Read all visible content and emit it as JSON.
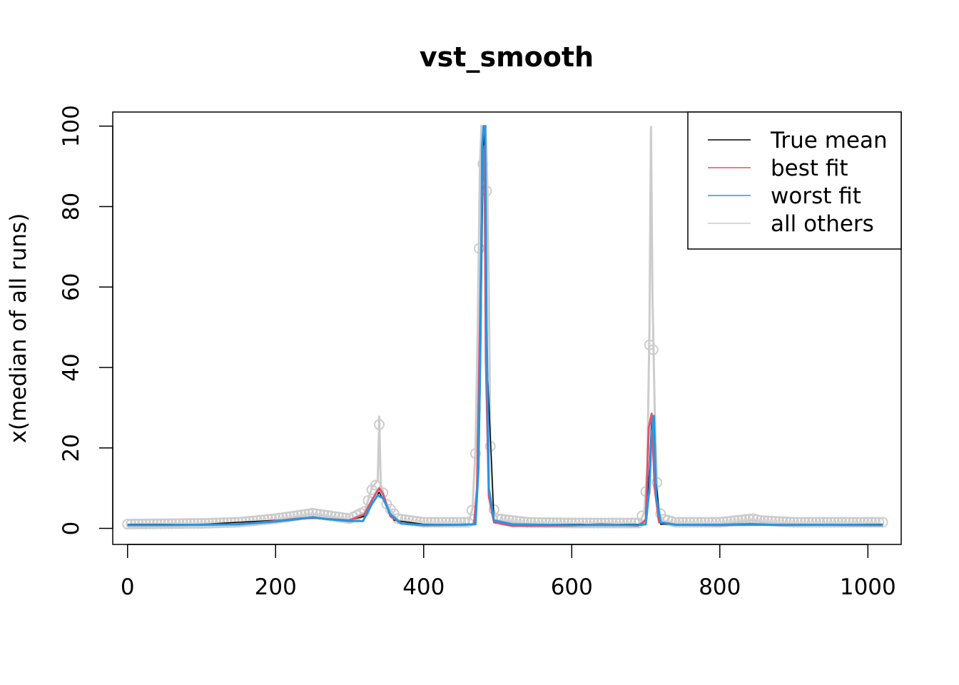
{
  "chart_data": {
    "type": "line",
    "title": "vst_smooth",
    "xlabel": "",
    "ylabel": "x(median of all runs)",
    "xlim": [
      -20,
      1045
    ],
    "ylim": [
      -4,
      103.5
    ],
    "x_ticks": [
      0,
      200,
      400,
      600,
      800,
      1000
    ],
    "y_ticks": [
      0,
      20,
      40,
      60,
      80,
      100
    ],
    "grid": false,
    "legend": {
      "position": "top-right",
      "entries": [
        {
          "label": "True mean",
          "color": "#000000"
        },
        {
          "label": "best fit",
          "color": "#df536b"
        },
        {
          "label": "worst fit",
          "color": "#2297e6"
        },
        {
          "label": "all others",
          "color": "#cccccc"
        }
      ]
    },
    "series": [
      {
        "name": "True mean",
        "color": "#000000",
        "points": [
          [
            0,
            1
          ],
          [
            100,
            1
          ],
          [
            200,
            2
          ],
          [
            250,
            2.5
          ],
          [
            300,
            2
          ],
          [
            320,
            3
          ],
          [
            340,
            9
          ],
          [
            360,
            2
          ],
          [
            400,
            1
          ],
          [
            470,
            1
          ],
          [
            476,
            30
          ],
          [
            481,
            100
          ],
          [
            486,
            40
          ],
          [
            495,
            2
          ],
          [
            520,
            1
          ],
          [
            700,
            1
          ],
          [
            705,
            15
          ],
          [
            708,
            28
          ],
          [
            712,
            15
          ],
          [
            720,
            1
          ],
          [
            1020,
            1
          ]
        ]
      },
      {
        "name": "best fit",
        "color": "#df536b",
        "points": [
          [
            0,
            0.8
          ],
          [
            50,
            0.8
          ],
          [
            100,
            0.9
          ],
          [
            150,
            1
          ],
          [
            200,
            1.8
          ],
          [
            230,
            2.4
          ],
          [
            250,
            2.7
          ],
          [
            270,
            2.3
          ],
          [
            300,
            2
          ],
          [
            320,
            3.5
          ],
          [
            330,
            7
          ],
          [
            340,
            10
          ],
          [
            345,
            8.5
          ],
          [
            355,
            3
          ],
          [
            370,
            1.2
          ],
          [
            400,
            0.8
          ],
          [
            450,
            0.9
          ],
          [
            468,
            1
          ],
          [
            472,
            10
          ],
          [
            476,
            50
          ],
          [
            479,
            85
          ],
          [
            482,
            95
          ],
          [
            484,
            42
          ],
          [
            488,
            8
          ],
          [
            495,
            1.5
          ],
          [
            520,
            0.6
          ],
          [
            600,
            0.7
          ],
          [
            640,
            1
          ],
          [
            690,
            0.7
          ],
          [
            700,
            2
          ],
          [
            704,
            25
          ],
          [
            708,
            28.5
          ],
          [
            712,
            10
          ],
          [
            718,
            1.5
          ],
          [
            740,
            0.9
          ],
          [
            800,
            0.8
          ],
          [
            900,
            0.9
          ],
          [
            1000,
            0.8
          ],
          [
            1020,
            0.8
          ]
        ]
      },
      {
        "name": "worst fit",
        "color": "#2297e6",
        "points": [
          [
            0,
            0.8
          ],
          [
            50,
            0.8
          ],
          [
            100,
            0.9
          ],
          [
            150,
            1
          ],
          [
            200,
            1.7
          ],
          [
            230,
            2.3
          ],
          [
            250,
            2.8
          ],
          [
            270,
            2.3
          ],
          [
            300,
            1.8
          ],
          [
            318,
            1.8
          ],
          [
            330,
            6
          ],
          [
            338,
            8.2
          ],
          [
            345,
            7.5
          ],
          [
            355,
            3.5
          ],
          [
            370,
            1.2
          ],
          [
            400,
            0.8
          ],
          [
            450,
            0.9
          ],
          [
            470,
            1
          ],
          [
            474,
            15
          ],
          [
            477,
            50
          ],
          [
            479,
            95
          ],
          [
            481,
            100
          ],
          [
            483,
            100
          ],
          [
            485,
            50
          ],
          [
            488,
            10
          ],
          [
            495,
            2
          ],
          [
            520,
            1
          ],
          [
            600,
            0.8
          ],
          [
            690,
            0.8
          ],
          [
            700,
            1
          ],
          [
            705,
            10
          ],
          [
            708,
            24
          ],
          [
            711,
            28
          ],
          [
            714,
            8
          ],
          [
            720,
            1.5
          ],
          [
            740,
            0.9
          ],
          [
            800,
            0.9
          ],
          [
            840,
            1.1
          ],
          [
            880,
            0.8
          ],
          [
            950,
            0.9
          ],
          [
            1020,
            0.8
          ]
        ]
      },
      {
        "name": "all others",
        "color": "#cccccc",
        "points": [
          [
            0,
            0.5
          ],
          [
            50,
            0.6
          ],
          [
            100,
            0.7
          ],
          [
            150,
            1
          ],
          [
            200,
            2
          ],
          [
            250,
            3.5
          ],
          [
            300,
            2
          ],
          [
            320,
            4
          ],
          [
            330,
            10
          ],
          [
            338,
            12
          ],
          [
            340,
            28
          ],
          [
            342,
            11
          ],
          [
            350,
            6
          ],
          [
            365,
            2
          ],
          [
            400,
            1
          ],
          [
            460,
            1
          ],
          [
            466,
            5
          ],
          [
            470,
            20
          ],
          [
            473,
            50
          ],
          [
            476,
            90
          ],
          [
            478,
            100
          ],
          [
            484,
            100
          ],
          [
            486,
            85
          ],
          [
            488,
            60
          ],
          [
            490,
            22
          ],
          [
            494,
            5
          ],
          [
            500,
            2
          ],
          [
            540,
            1
          ],
          [
            600,
            0.8
          ],
          [
            690,
            0.8
          ],
          [
            698,
            4
          ],
          [
            702,
            15
          ],
          [
            705,
            50
          ],
          [
            707,
            100
          ],
          [
            709,
            58
          ],
          [
            712,
            30
          ],
          [
            716,
            6
          ],
          [
            722,
            2
          ],
          [
            740,
            1
          ],
          [
            800,
            1
          ],
          [
            845,
            2
          ],
          [
            855,
            1.5
          ],
          [
            900,
            1
          ],
          [
            1000,
            1
          ],
          [
            1020,
            1
          ]
        ]
      }
    ]
  }
}
